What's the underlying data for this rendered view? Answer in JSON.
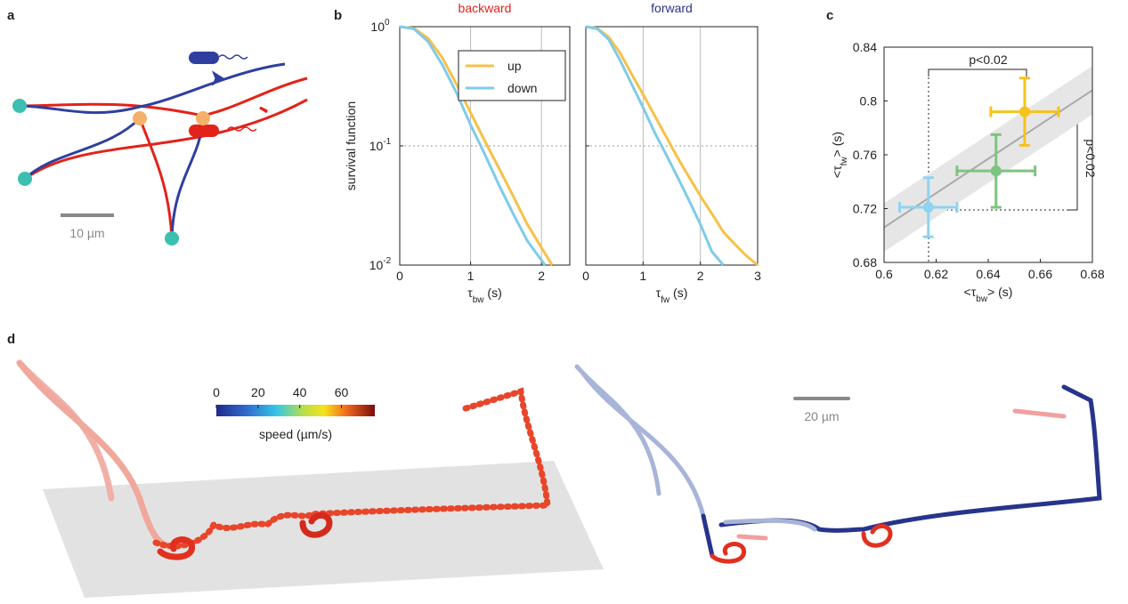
{
  "panel_labels": [
    "a",
    "b",
    "c",
    "d"
  ],
  "panel_a": {
    "scale_label": "10 µm"
  },
  "chart_data": [
    {
      "type": "line",
      "title": "backward",
      "title_color": "#e2231a",
      "log_y": true,
      "grid": true,
      "ylabel": "survival function",
      "xlabel": [
        {
          "text": "τ"
        },
        {
          "text": "bw",
          "sub": true
        },
        {
          "text": " (s)"
        }
      ],
      "xlim": [
        0,
        2.4
      ],
      "xticks": [
        0,
        1,
        2
      ],
      "ylim": [
        0.01,
        1
      ],
      "yticks": [
        {
          "value": 1,
          "label": "10",
          "sup": "0"
        },
        {
          "value": 0.1,
          "label": "10",
          "sup": "-1"
        },
        {
          "value": 0.01,
          "label": "10",
          "sup": "-2"
        }
      ],
      "legend": "top-right",
      "series": [
        {
          "name": "up",
          "color": "#f7c148",
          "x": [
            0,
            0.2,
            0.4,
            0.6,
            0.8,
            1.0,
            1.2,
            1.4,
            1.6,
            1.8,
            2.0,
            2.15
          ],
          "values": [
            1,
            0.97,
            0.8,
            0.55,
            0.33,
            0.19,
            0.11,
            0.065,
            0.038,
            0.022,
            0.014,
            0.01
          ]
        },
        {
          "name": "down",
          "color": "#7fcbea",
          "x": [
            0,
            0.2,
            0.4,
            0.6,
            0.8,
            1.0,
            1.2,
            1.4,
            1.6,
            1.8,
            2.0,
            2.05
          ],
          "values": [
            1,
            0.96,
            0.75,
            0.48,
            0.28,
            0.15,
            0.085,
            0.047,
            0.027,
            0.016,
            0.011,
            0.01
          ]
        }
      ]
    },
    {
      "type": "line",
      "title": "forward",
      "title_color": "#27348b",
      "log_y": true,
      "grid": true,
      "xlabel": [
        {
          "text": "τ"
        },
        {
          "text": "fw",
          "sub": true
        },
        {
          "text": "  (s)"
        }
      ],
      "xlim": [
        0,
        3
      ],
      "xticks": [
        0,
        1,
        2,
        3
      ],
      "ylim": [
        0.01,
        1
      ],
      "series": [
        {
          "color": "#f7c148",
          "x": [
            0,
            0.2,
            0.4,
            0.6,
            0.8,
            1.0,
            1.2,
            1.4,
            1.6,
            1.8,
            2.0,
            2.2,
            2.4,
            2.6,
            2.8,
            3.0
          ],
          "values": [
            1,
            0.97,
            0.82,
            0.6,
            0.4,
            0.27,
            0.18,
            0.12,
            0.08,
            0.055,
            0.038,
            0.027,
            0.019,
            0.015,
            0.012,
            0.0095
          ]
        },
        {
          "color": "#7fcbea",
          "x": [
            0,
            0.2,
            0.4,
            0.6,
            0.8,
            1.0,
            1.2,
            1.4,
            1.6,
            1.8,
            2.0,
            2.2,
            2.4
          ],
          "values": [
            1,
            0.96,
            0.78,
            0.52,
            0.33,
            0.21,
            0.13,
            0.085,
            0.055,
            0.035,
            0.022,
            0.013,
            0.01
          ]
        }
      ]
    },
    {
      "type": "scatter",
      "xlabel": [
        {
          "text": "<τ"
        },
        {
          "text": "bw",
          "sub": true
        },
        {
          "text": "> (s)"
        }
      ],
      "ylabel": [
        {
          "text": "<τ"
        },
        {
          "text": "fw",
          "sub": true
        },
        {
          "text": "> (s)"
        }
      ],
      "xlim": [
        0.6,
        0.68
      ],
      "xticks": [
        0.6,
        0.62,
        0.64,
        0.66,
        0.68
      ],
      "ylim": [
        0.68,
        0.84
      ],
      "yticks": [
        0.68,
        0.72,
        0.76,
        0.8,
        0.84
      ],
      "fit": {
        "x": [
          0.6,
          0.68
        ],
        "values": [
          0.706,
          0.808
        ],
        "band": 0.018
      },
      "annotations": [
        "p<0.02",
        "p<0.02"
      ],
      "series": [
        {
          "color": "#8fd3f0",
          "x": [
            0.617
          ],
          "values": [
            0.721
          ],
          "xerr": [
            0.011
          ],
          "yerr": [
            0.022
          ]
        },
        {
          "color": "#7cc47f",
          "x": [
            0.643
          ],
          "values": [
            0.748
          ],
          "xerr": [
            0.015
          ],
          "yerr": [
            0.027
          ]
        },
        {
          "color": "#f6c21c",
          "x": [
            0.654
          ],
          "values": [
            0.792
          ],
          "xerr": [
            0.013
          ],
          "yerr": [
            0.025
          ]
        }
      ]
    }
  ],
  "panel_d": {
    "colorbar": {
      "lim": [
        0,
        76
      ],
      "ticks": [
        0,
        20,
        40,
        60
      ],
      "label": "speed (µm/s)"
    },
    "scale_label": "20 µm"
  }
}
